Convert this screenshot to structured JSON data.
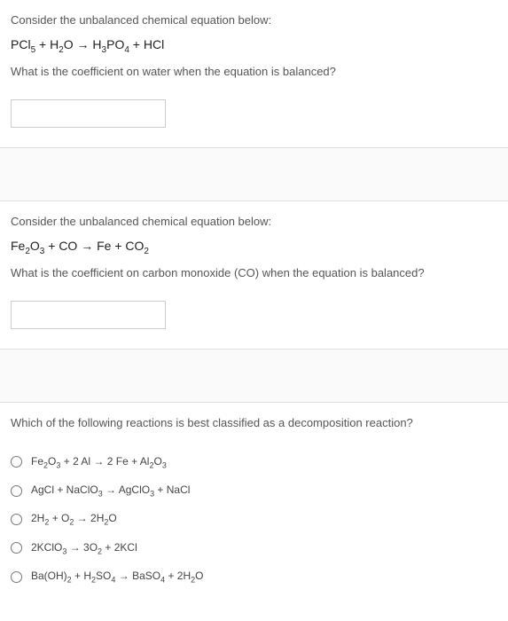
{
  "q1": {
    "intro": "Consider the unbalanced chemical equation below:",
    "equation_html": "PCl<sub>5</sub> + H<sub>2</sub>O → H<sub>3</sub>PO<sub>4</sub> + HCl",
    "question": "What is the coefficient on water when the equation is balanced?",
    "answer_value": ""
  },
  "q2": {
    "intro": "Consider the unbalanced chemical equation below:",
    "equation_html": "Fe<sub>2</sub>O<sub>3</sub> + CO → Fe + CO<sub>2</sub>",
    "question": "What is the coefficient on carbon monoxide (CO) when the equation is balanced?",
    "answer_value": ""
  },
  "q3": {
    "question": "Which of the following reactions is best classified as a decomposition reaction?",
    "options": [
      "Fe<sub>2</sub>O<sub>3</sub> + 2 Al → 2 Fe + Al<sub>2</sub>O<sub>3</sub>",
      "AgCl + NaClO<sub>3</sub> → AgClO<sub>3</sub> + NaCl",
      "2H<sub>2</sub> + O<sub>2</sub> → 2H<sub>2</sub>O",
      "2KClO<sub>3</sub> → 3O<sub>2</sub> + 2KCl",
      "Ba(OH)<sub>2</sub> + H<sub>2</sub>SO<sub>4</sub> → BaSO<sub>4</sub> + 2H<sub>2</sub>O"
    ]
  }
}
